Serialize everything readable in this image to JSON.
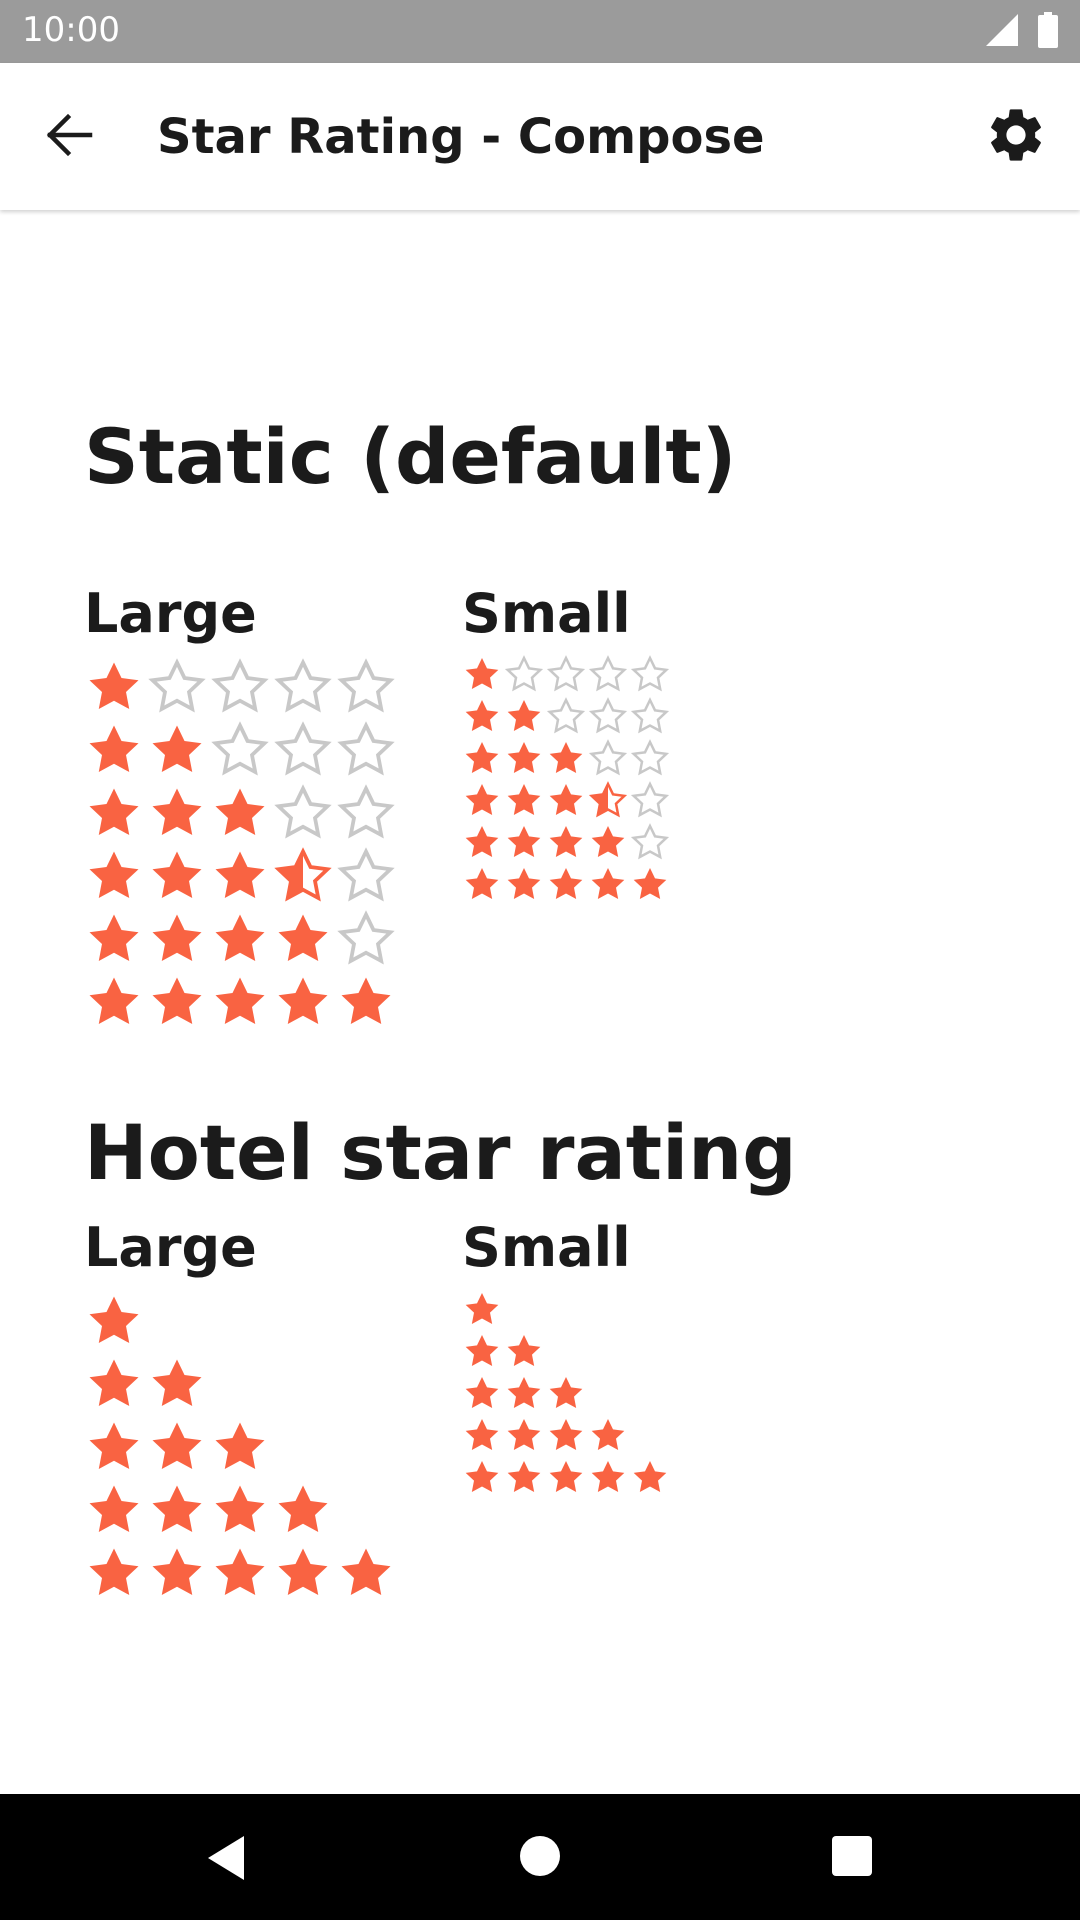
{
  "status_bar": {
    "time": "10:00"
  },
  "app_bar": {
    "title": "Star Rating - Compose",
    "back_icon": "arrow-back-icon",
    "settings_icon": "gear-icon"
  },
  "colors": {
    "star_filled": "#f96342",
    "star_empty_outline": "#c8c8c8",
    "text": "#1b1b1b"
  },
  "sections": [
    {
      "title": "Static (default)",
      "large_label": "Large",
      "small_label": "Small",
      "max_stars": 5,
      "show_empty": true,
      "ratings": [
        1,
        2,
        3,
        3.5,
        4,
        5
      ]
    },
    {
      "title": "Hotel star rating",
      "large_label": "Large",
      "small_label": "Small",
      "max_stars": 5,
      "show_empty": false,
      "ratings": [
        1,
        2,
        3,
        4,
        5
      ]
    }
  ],
  "nav_bar": {
    "back_icon": "nav-back-icon",
    "home_icon": "nav-home-icon",
    "recents_icon": "nav-recents-icon"
  }
}
